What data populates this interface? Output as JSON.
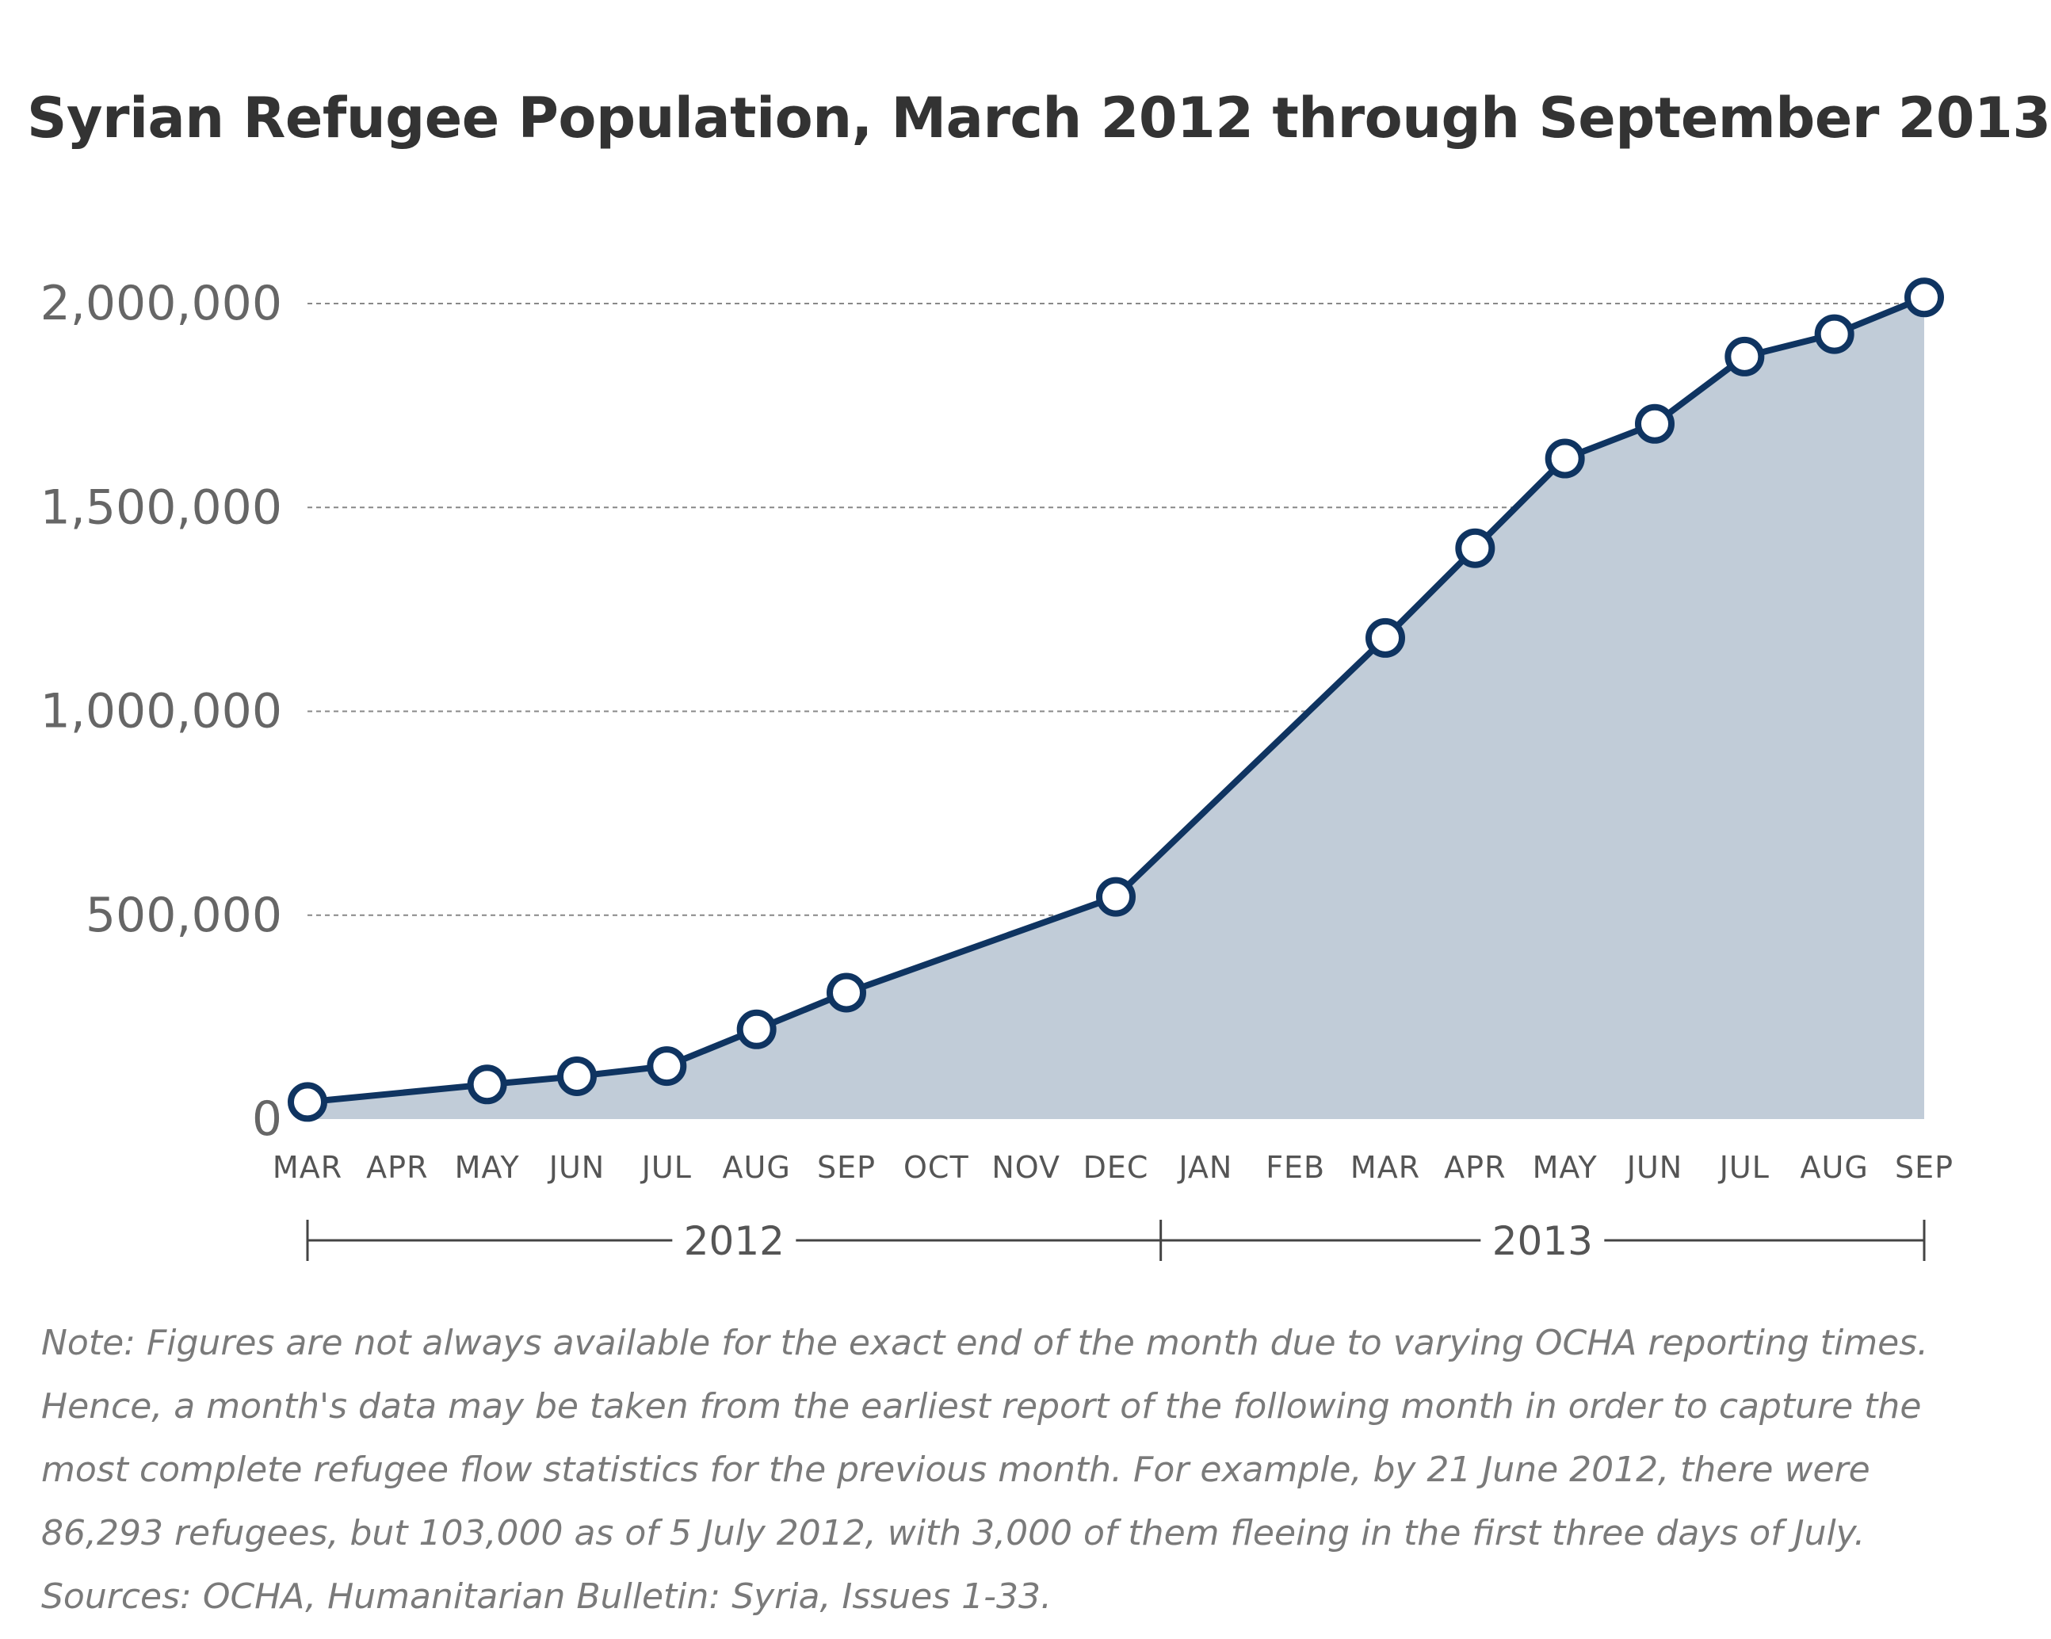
{
  "chart_data": {
    "type": "area",
    "title": "Syrian Refugee Population, March 2012 through September 2013",
    "categories": [
      "MAR",
      "APR",
      "MAY",
      "JUN",
      "JUL",
      "AUG",
      "SEP",
      "OCT",
      "NOV",
      "DEC",
      "JAN",
      "FEB",
      "MAR",
      "APR",
      "MAY",
      "JUN",
      "JUL",
      "AUG",
      "SEP"
    ],
    "years": [
      {
        "label": "2012",
        "start_index": 0,
        "end_index": 9
      },
      {
        "label": "2013",
        "start_index": 10,
        "end_index": 18
      }
    ],
    "series": [
      {
        "points": [
          {
            "index": 0,
            "value": 42000
          },
          {
            "index": 2,
            "value": 85000
          },
          {
            "index": 3,
            "value": 105000
          },
          {
            "index": 4,
            "value": 130000
          },
          {
            "index": 5,
            "value": 220000
          },
          {
            "index": 6,
            "value": 310000
          },
          {
            "index": 9,
            "value": 545000
          },
          {
            "index": 12,
            "value": 1180000
          },
          {
            "index": 13,
            "value": 1400000
          },
          {
            "index": 14,
            "value": 1620000
          },
          {
            "index": 15,
            "value": 1705000
          },
          {
            "index": 16,
            "value": 1870000
          },
          {
            "index": 17,
            "value": 1925000
          },
          {
            "index": 18,
            "value": 2015000
          }
        ]
      }
    ],
    "y_ticks": [
      {
        "value": 0,
        "label": "0"
      },
      {
        "value": 500000,
        "label": "500,000"
      },
      {
        "value": 1000000,
        "label": "1,000,000"
      },
      {
        "value": 1500000,
        "label": "1,500,000"
      },
      {
        "value": 2000000,
        "label": "2,000,000"
      }
    ],
    "ylim": [
      0,
      2000000
    ],
    "grid": true,
    "legend": "none",
    "colors": {
      "line": "#0f3461",
      "area": "#c1ccd8",
      "marker_fill": "#ffffff",
      "grid": "#888888"
    }
  },
  "note": "Note: Figures are not always available for the exact end of the month due to varying OCHA reporting times. Hence, a month's data may be taken from the earliest report of the following month in order to capture the most complete refugee flow statistics for the previous month. For example, by 21 June 2012, there were 86,293 refugees, but 103,000 as of 5 July 2012, with 3,000 of them fleeing in the first three days of July.  Sources: OCHA, Humanitarian Bulletin: Syria, Issues 1-33."
}
